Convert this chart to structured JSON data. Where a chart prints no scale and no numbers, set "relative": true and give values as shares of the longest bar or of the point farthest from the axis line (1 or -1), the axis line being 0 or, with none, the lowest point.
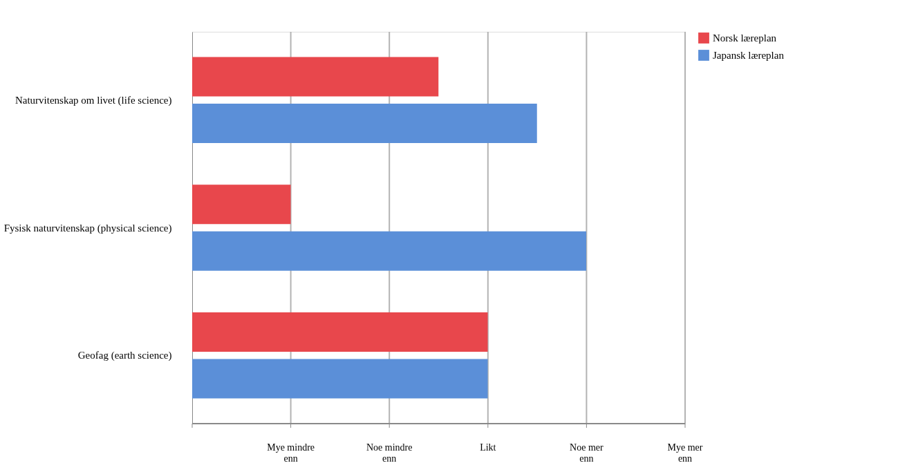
{
  "chart_data": {
    "type": "bar",
    "orientation": "horizontal",
    "relative": true,
    "categories": [
      "Naturvitenskap om livet (life science)",
      "Fysisk naturvitenskap (physical science)",
      "Geofag (earth science)"
    ],
    "series": [
      {
        "name": "Norsk læreplan",
        "color": "#e8474c",
        "values": [
          0.625,
          0.25,
          0.75
        ]
      },
      {
        "name": "Japansk læreplan",
        "color": "#5b8fd8",
        "values": [
          0.875,
          1,
          0.75
        ]
      }
    ],
    "annotations": [
      "Mye mindre enn",
      "Noe mindre enn",
      "Likt",
      "Noe mer enn",
      "Mye mer enn"
    ],
    "grid": "x",
    "legend": "right"
  }
}
